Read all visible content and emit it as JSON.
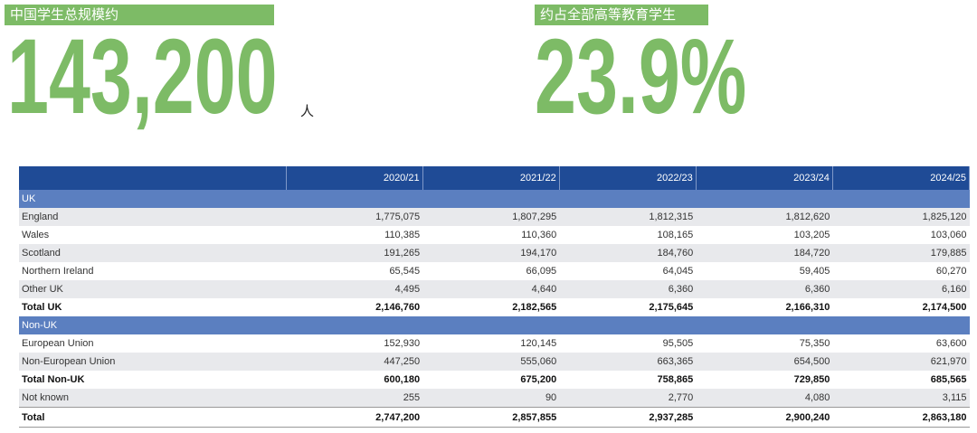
{
  "header": {
    "left_label": "中国学生总规模约",
    "left_value": "143,200",
    "left_unit": "人",
    "right_label": "约占全部高等教育学生",
    "right_value": "23.9%"
  },
  "table": {
    "columns": [
      "2020/21",
      "2021/22",
      "2022/23",
      "2023/24",
      "2024/25"
    ],
    "rows": [
      [
        "UK"
      ],
      [
        "England",
        "1,775,075",
        "1,807,295",
        "1,812,315",
        "1,812,620",
        "1,825,120"
      ],
      [
        "Wales",
        "110,385",
        "110,360",
        "108,165",
        "103,205",
        "103,060"
      ],
      [
        "Scotland",
        "191,265",
        "194,170",
        "184,760",
        "184,720",
        "179,885"
      ],
      [
        "Northern Ireland",
        "65,545",
        "66,095",
        "64,045",
        "59,405",
        "60,270"
      ],
      [
        "Other UK",
        "4,495",
        "4,640",
        "6,360",
        "6,360",
        "6,160"
      ],
      [
        "Total UK",
        "2,146,760",
        "2,182,565",
        "2,175,645",
        "2,166,310",
        "2,174,500"
      ],
      [
        "Non-UK"
      ],
      [
        "European Union",
        "152,930",
        "120,145",
        "95,505",
        "75,350",
        "63,600"
      ],
      [
        "Non-European Union",
        "447,250",
        "555,060",
        "663,365",
        "654,500",
        "621,970"
      ],
      [
        "Total Non-UK",
        "600,180",
        "675,200",
        "758,865",
        "729,850",
        "685,565"
      ],
      [
        "Not known",
        "255",
        "90",
        "2,770",
        "4,080",
        "3,115"
      ],
      [
        "Total",
        "2,747,200",
        "2,857,855",
        "2,937,285",
        "2,900,240",
        "2,863,180"
      ]
    ]
  }
}
